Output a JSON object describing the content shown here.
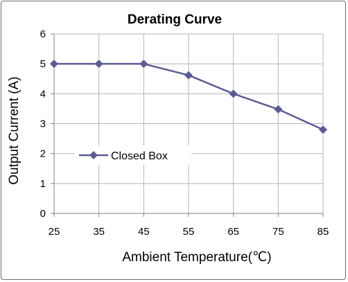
{
  "chart_data": {
    "type": "line",
    "title": "Derating Curve",
    "xlabel": "Ambient Temperature(℃)",
    "ylabel": "Output Current (A)",
    "x": [
      25,
      35,
      45,
      55,
      65,
      75,
      85
    ],
    "x_ticks": [
      "25",
      "35",
      "45",
      "55",
      "65",
      "75",
      "85"
    ],
    "y_ticks": [
      "0",
      "1",
      "2",
      "3",
      "4",
      "5",
      "6"
    ],
    "xlim": [
      25,
      85
    ],
    "ylim": [
      0,
      6
    ],
    "grid": true,
    "legend_position": "left",
    "series": [
      {
        "name": "Closed Box",
        "color": "#5b5b94",
        "marker": "diamond",
        "values": [
          5.0,
          5.0,
          5.0,
          4.62,
          4.0,
          3.48,
          2.8
        ]
      }
    ]
  }
}
